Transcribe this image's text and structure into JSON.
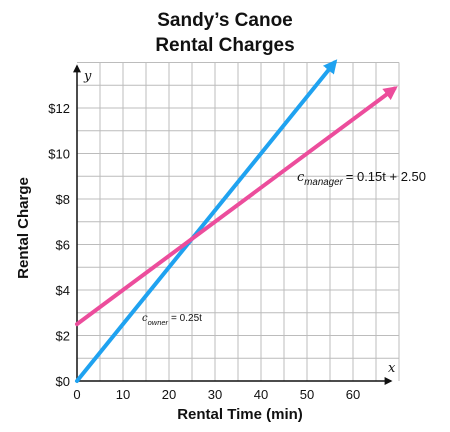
{
  "chart_data": {
    "type": "line",
    "title_lines": [
      "Sandy’s Canoe",
      "Rental Charges"
    ],
    "xlabel": "Rental Time (min)",
    "ylabel": "Rental Charge",
    "x_var": "x",
    "y_var": "y",
    "xlim": [
      0,
      70
    ],
    "ylim": [
      0,
      14
    ],
    "x_ticks": [
      0,
      10,
      20,
      30,
      40,
      50,
      60
    ],
    "x_tick_labels": [
      "0",
      "10",
      "20",
      "30",
      "40",
      "50",
      "60"
    ],
    "y_ticks": [
      0,
      2,
      4,
      6,
      8,
      10,
      12
    ],
    "y_tick_labels": [
      "$0",
      "$2",
      "$4",
      "$6",
      "$8",
      "$10",
      "$12"
    ],
    "grid": true,
    "series": [
      {
        "name": "owner",
        "equation": {
          "var": "c",
          "sub": "owner",
          "rhs": "= 0.25t"
        },
        "color": "#1fa2f0",
        "points": [
          [
            0,
            0
          ],
          [
            56,
            14
          ]
        ]
      },
      {
        "name": "manager",
        "equation": {
          "var": "c",
          "sub": "manager",
          "rhs": "= 0.15t + 2.50"
        },
        "color": "#ec4d9c",
        "points": [
          [
            0,
            2.5
          ],
          [
            69,
            12.85
          ]
        ]
      }
    ]
  }
}
